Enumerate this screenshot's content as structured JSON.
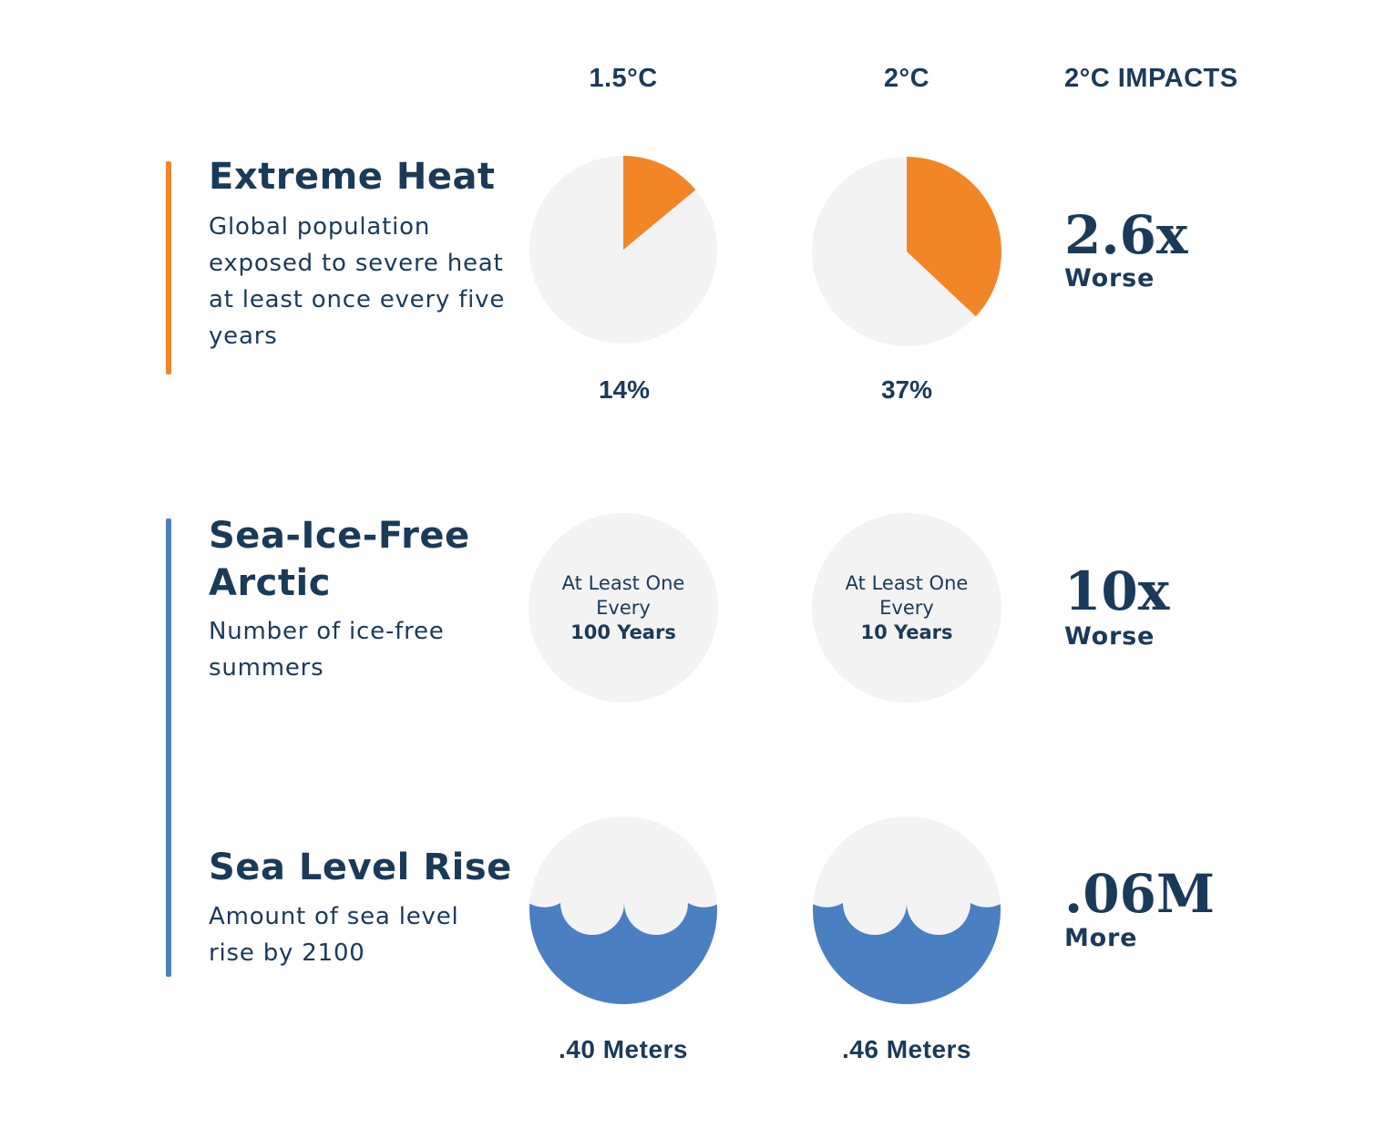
{
  "columns": {
    "c1": "1.5°C",
    "c2": "2°C",
    "c3": "2°C IMPACTS"
  },
  "colors": {
    "heat": "#f28627",
    "sea": "#4a7fc1",
    "circle_bg": "#f3f3f3",
    "navy": "#1a3a5a"
  },
  "extreme_heat": {
    "title": "Extreme Heat",
    "description": "Global population exposed to severe heat at least once every five years",
    "value_15": "14%",
    "value_2": "37%",
    "impact_value": "2.6x",
    "impact_label": "Worse"
  },
  "sea_ice": {
    "title_line1": "Sea-Ice-Free",
    "title_line2": "Arctic",
    "description": "Number of ice-free summers",
    "c1_line1": "At Least One",
    "c1_line2": "Every",
    "c1_line3": "100 Years",
    "c2_line1": "At Least One",
    "c2_line2": "Every",
    "c2_line3": "10 Years",
    "impact_value": "10x",
    "impact_label": "Worse"
  },
  "sea_level": {
    "title": "Sea Level Rise",
    "description": "Amount of sea level rise by 2100",
    "value_15": ".40 Meters",
    "value_2": ".46 Meters",
    "impact_value": ".06M",
    "impact_label": "More"
  },
  "chart_data": [
    {
      "type": "pie",
      "title": "",
      "slices": [
        {
          "label": "14%",
          "value": 14
        },
        {
          "label": "",
          "value": 86
        }
      ]
    },
    {
      "type": "pie",
      "title": "",
      "slices": [
        {
          "label": "37%",
          "value": 37
        },
        {
          "label": "",
          "value": 63
        }
      ]
    }
  ]
}
